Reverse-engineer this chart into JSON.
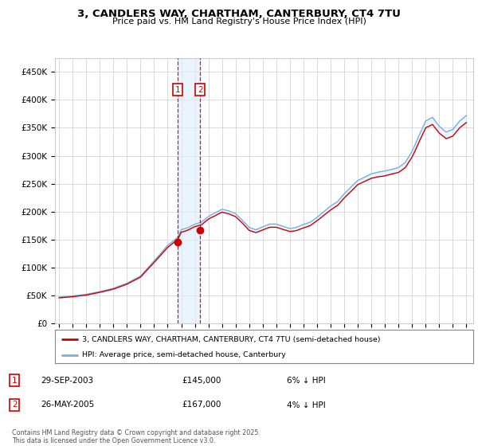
{
  "title": "3, CANDLERS WAY, CHARTHAM, CANTERBURY, CT4 7TU",
  "subtitle": "Price paid vs. HM Land Registry's House Price Index (HPI)",
  "legend_line1": "3, CANDLERS WAY, CHARTHAM, CANTERBURY, CT4 7TU (semi-detached house)",
  "legend_line2": "HPI: Average price, semi-detached house, Canterbury",
  "footer": "Contains HM Land Registry data © Crown copyright and database right 2025.\nThis data is licensed under the Open Government Licence v3.0.",
  "purchase1_date": "29-SEP-2003",
  "purchase1_price": 145000,
  "purchase1_label": "1",
  "purchase1_note": "6% ↓ HPI",
  "purchase2_date": "26-MAY-2005",
  "purchase2_price": 167000,
  "purchase2_label": "2",
  "purchase2_note": "4% ↓ HPI",
  "hpi_color": "#7bafd4",
  "price_color": "#cc0000",
  "vline_color": "#cc0000",
  "shade_color": "#ddeeff",
  "ylim": [
    0,
    475000
  ],
  "yticks": [
    0,
    50000,
    100000,
    150000,
    200000,
    250000,
    300000,
    350000,
    400000,
    450000
  ],
  "ytick_labels": [
    "£0",
    "£50K",
    "£100K",
    "£150K",
    "£200K",
    "£250K",
    "£300K",
    "£350K",
    "£400K",
    "£450K"
  ],
  "xlim_start": 1994.7,
  "xlim_end": 2025.5,
  "purchase1_x": 2003.75,
  "purchase1_y": 145000,
  "purchase2_x": 2005.4,
  "purchase2_y": 167000,
  "xtick_years": [
    1995,
    1996,
    1997,
    1998,
    1999,
    2000,
    2001,
    2002,
    2003,
    2004,
    2005,
    2006,
    2007,
    2008,
    2009,
    2010,
    2011,
    2012,
    2013,
    2014,
    2015,
    2016,
    2017,
    2018,
    2019,
    2020,
    2021,
    2022,
    2023,
    2024,
    2025
  ],
  "bg_color": "#ffffff",
  "grid_color": "#cccccc",
  "box_color": "#cc0000"
}
